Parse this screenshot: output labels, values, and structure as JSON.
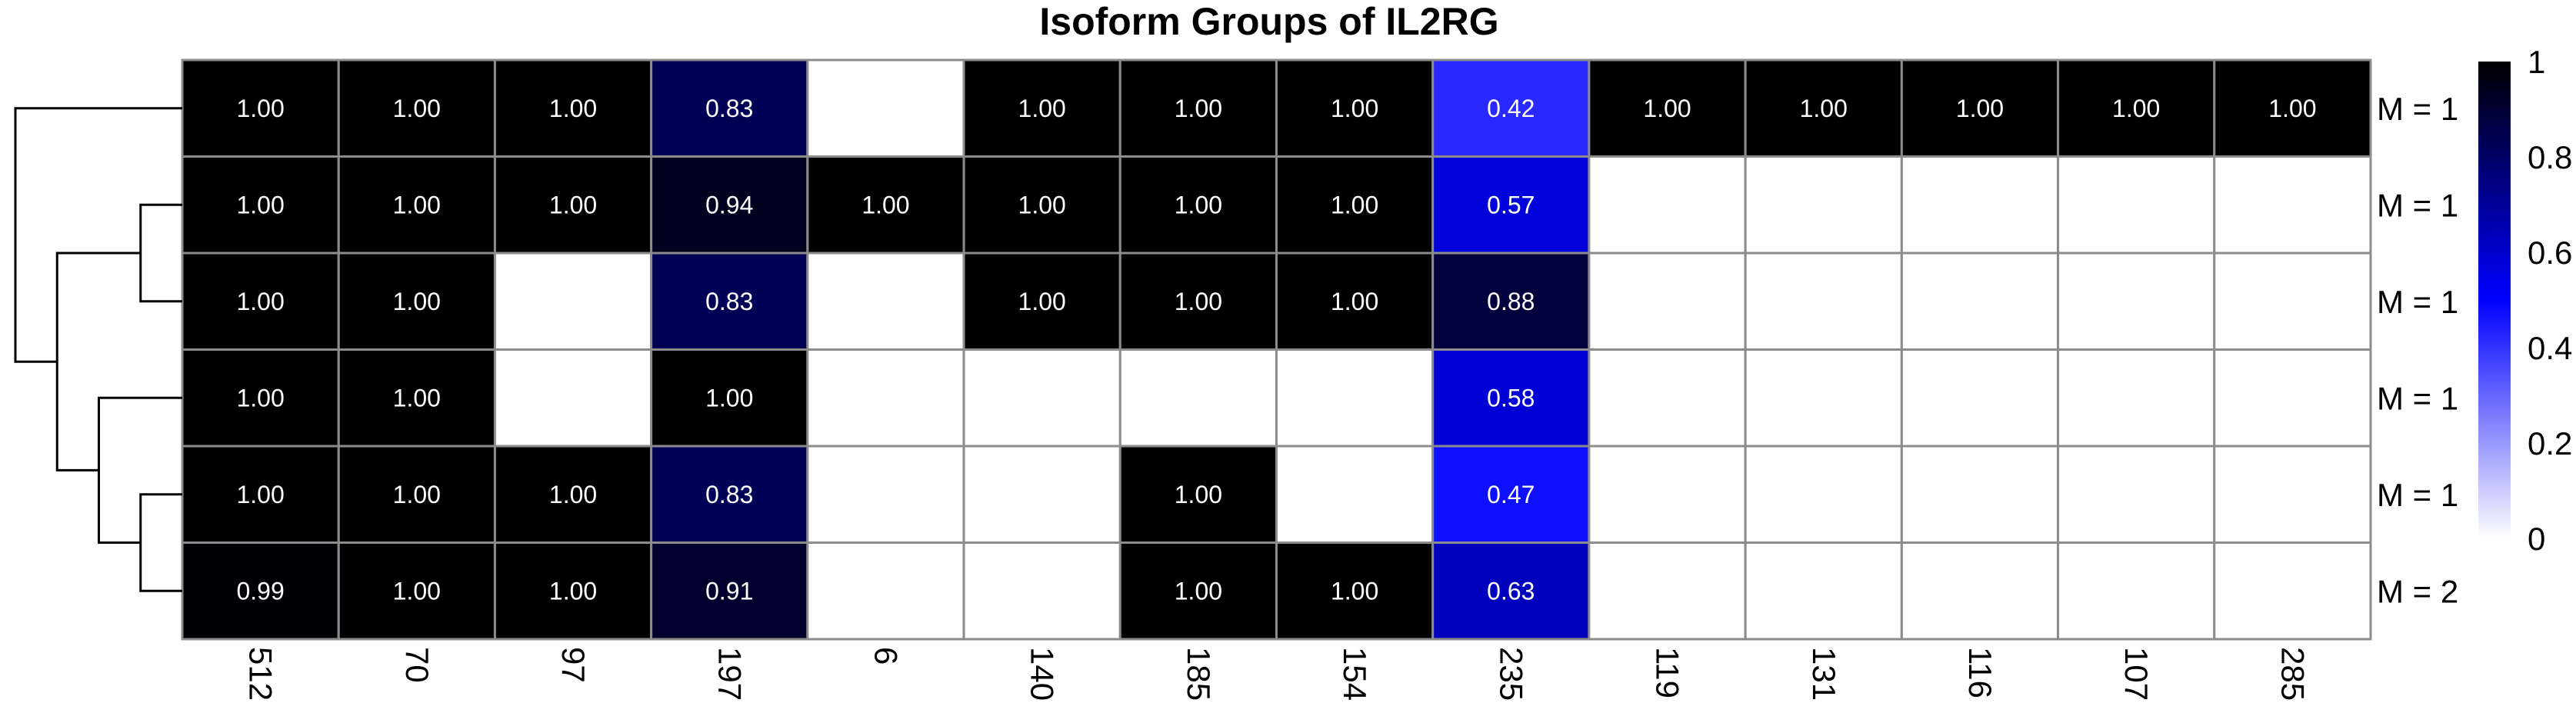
{
  "chart_data": {
    "type": "heatmap",
    "title": "Isoform Groups of IL2RG",
    "columns": [
      "512",
      "70",
      "97",
      "197",
      "6",
      "140",
      "185",
      "154",
      "235",
      "119",
      "131",
      "116",
      "107",
      "285"
    ],
    "row_labels": [
      "M = 1",
      "M = 1",
      "M = 1",
      "M = 1",
      "M = 1",
      "M = 2"
    ],
    "values": [
      [
        1.0,
        1.0,
        1.0,
        0.83,
        null,
        1.0,
        1.0,
        1.0,
        0.42,
        1.0,
        1.0,
        1.0,
        1.0,
        1.0
      ],
      [
        1.0,
        1.0,
        1.0,
        0.94,
        1.0,
        1.0,
        1.0,
        1.0,
        0.57,
        null,
        null,
        null,
        null,
        null
      ],
      [
        1.0,
        1.0,
        null,
        0.83,
        null,
        1.0,
        1.0,
        1.0,
        0.88,
        null,
        null,
        null,
        null,
        null
      ],
      [
        1.0,
        1.0,
        null,
        1.0,
        null,
        null,
        null,
        null,
        0.58,
        null,
        null,
        null,
        null,
        null
      ],
      [
        1.0,
        1.0,
        1.0,
        0.83,
        null,
        null,
        1.0,
        null,
        0.47,
        null,
        null,
        null,
        null,
        null
      ],
      [
        0.99,
        1.0,
        1.0,
        0.91,
        null,
        null,
        1.0,
        1.0,
        0.63,
        null,
        null,
        null,
        null,
        null
      ]
    ],
    "cell_labels": [
      [
        "1.00",
        "1.00",
        "1.00",
        "0.83",
        "",
        "1.00",
        "1.00",
        "1.00",
        "0.42",
        "1.00",
        "1.00",
        "1.00",
        "1.00",
        "1.00"
      ],
      [
        "1.00",
        "1.00",
        "1.00",
        "0.94",
        "1.00",
        "1.00",
        "1.00",
        "1.00",
        "0.57",
        "",
        "",
        "",
        "",
        ""
      ],
      [
        "1.00",
        "1.00",
        "",
        "0.83",
        "",
        "1.00",
        "1.00",
        "1.00",
        "0.88",
        "",
        "",
        "",
        "",
        ""
      ],
      [
        "1.00",
        "1.00",
        "",
        "1.00",
        "",
        "",
        "",
        "",
        "0.58",
        "",
        "",
        "",
        "",
        ""
      ],
      [
        "1.00",
        "1.00",
        "1.00",
        "0.83",
        "",
        "",
        "1.00",
        "",
        "0.47",
        "",
        "",
        "",
        "",
        ""
      ],
      [
        "0.99",
        "1.00",
        "1.00",
        "0.91",
        "",
        "",
        "1.00",
        "1.00",
        "0.63",
        "",
        "",
        "",
        "",
        ""
      ]
    ],
    "color_scale": {
      "range": [
        0,
        1
      ],
      "ticks": [
        "0",
        "0.2",
        "0.4",
        "0.6",
        "0.8",
        "1"
      ],
      "stops": [
        "#ffffff",
        "#0000ff",
        "#000000"
      ],
      "empty_color": "#ffffff"
    },
    "grid_color": "#8c8c8c",
    "dendrogram": {
      "side": "left",
      "tree": [
        [
          [
            1,
            2
          ],
          [
            3,
            [
              4,
              5
            ]
          ]
        ],
        0
      ]
    },
    "legend_placement": "right"
  }
}
